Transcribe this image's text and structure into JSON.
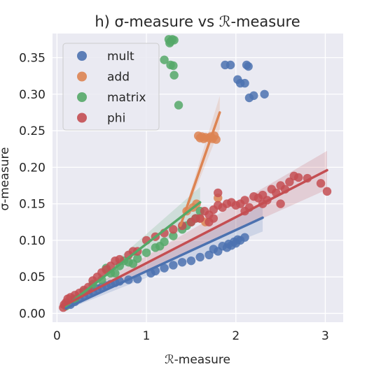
{
  "chart_data": {
    "type": "scatter",
    "title": "h) σ-measure vs ℛ-measure",
    "xlabel": "ℛ-measure",
    "ylabel": "σ-measure",
    "xlim": [
      -0.05,
      3.2
    ],
    "ylim": [
      -0.012,
      0.383
    ],
    "xticks": [
      0,
      1,
      2,
      3
    ],
    "yticks": [
      0.0,
      0.05,
      0.1,
      0.15,
      0.2,
      0.25,
      0.3,
      0.35
    ],
    "ytick_labels": [
      "0.00",
      "0.05",
      "0.10",
      "0.15",
      "0.20",
      "0.25",
      "0.30",
      "0.35"
    ],
    "grid": true,
    "legend_position": "top-left",
    "background": "#eaeaf2",
    "series": [
      {
        "name": "mult",
        "color": "#4c72b0",
        "points": [
          [
            0.15,
            0.012
          ],
          [
            0.2,
            0.016
          ],
          [
            0.25,
            0.02
          ],
          [
            0.3,
            0.024
          ],
          [
            0.35,
            0.027
          ],
          [
            0.4,
            0.03
          ],
          [
            0.45,
            0.034
          ],
          [
            0.5,
            0.036
          ],
          [
            0.55,
            0.038
          ],
          [
            0.6,
            0.04
          ],
          [
            0.65,
            0.042
          ],
          [
            0.7,
            0.044
          ],
          [
            0.8,
            0.046
          ],
          [
            0.9,
            0.047
          ],
          [
            1.05,
            0.055
          ],
          [
            1.1,
            0.058
          ],
          [
            1.2,
            0.062
          ],
          [
            1.3,
            0.066
          ],
          [
            1.4,
            0.07
          ],
          [
            1.5,
            0.072
          ],
          [
            1.6,
            0.077
          ],
          [
            1.7,
            0.08
          ],
          [
            1.8,
            0.085
          ],
          [
            1.9,
            0.09
          ],
          [
            1.95,
            0.093
          ],
          [
            2.0,
            0.096
          ],
          [
            2.05,
            0.1
          ],
          [
            2.1,
            0.104
          ],
          [
            1.75,
            0.088
          ],
          [
            1.85,
            0.092
          ],
          [
            1.92,
            0.095
          ],
          [
            1.98,
            0.098
          ],
          [
            2.02,
            0.101
          ],
          [
            1.88,
            0.34
          ],
          [
            1.94,
            0.34
          ],
          [
            2.02,
            0.32
          ],
          [
            2.05,
            0.315
          ],
          [
            2.1,
            0.315
          ],
          [
            2.12,
            0.34
          ],
          [
            2.14,
            0.338
          ],
          [
            2.15,
            0.295
          ],
          [
            2.2,
            0.298
          ],
          [
            2.32,
            0.3
          ]
        ],
        "fit": [
          [
            0.1,
            0.007
          ],
          [
            2.3,
            0.131
          ]
        ]
      },
      {
        "name": "add",
        "color": "#dd8452",
        "points": [
          [
            1.45,
            0.14
          ],
          [
            1.52,
            0.145
          ],
          [
            1.56,
            0.15
          ],
          [
            1.6,
            0.13
          ],
          [
            1.66,
            0.125
          ],
          [
            1.58,
            0.243
          ],
          [
            1.62,
            0.242
          ],
          [
            1.66,
            0.241
          ],
          [
            1.7,
            0.24
          ],
          [
            1.74,
            0.239
          ],
          [
            1.78,
            0.238
          ],
          [
            1.8,
            0.158
          ],
          [
            1.6,
            0.24
          ],
          [
            1.64,
            0.239
          ],
          [
            1.72,
            0.242
          ],
          [
            1.76,
            0.243
          ]
        ],
        "fit": [
          [
            1.38,
            0.12
          ],
          [
            1.82,
            0.275
          ]
        ]
      },
      {
        "name": "matrix",
        "color": "#55a868",
        "points": [
          [
            1.25,
            0.375
          ],
          [
            1.27,
            0.372
          ],
          [
            1.29,
            0.375
          ],
          [
            1.31,
            0.374
          ],
          [
            1.26,
            0.37
          ],
          [
            1.2,
            0.347
          ],
          [
            1.27,
            0.34
          ],
          [
            1.3,
            0.339
          ],
          [
            1.31,
            0.326
          ],
          [
            1.36,
            0.285
          ],
          [
            0.1,
            0.01
          ],
          [
            0.2,
            0.02
          ],
          [
            0.3,
            0.03
          ],
          [
            0.4,
            0.04
          ],
          [
            0.5,
            0.046
          ],
          [
            0.6,
            0.055
          ],
          [
            0.7,
            0.065
          ],
          [
            0.8,
            0.07
          ],
          [
            0.9,
            0.075
          ],
          [
            1.0,
            0.083
          ],
          [
            1.1,
            0.09
          ],
          [
            1.2,
            0.098
          ],
          [
            1.3,
            0.106
          ],
          [
            1.4,
            0.115
          ],
          [
            1.5,
            0.125
          ],
          [
            1.55,
            0.13
          ],
          [
            1.6,
            0.14
          ],
          [
            0.55,
            0.062
          ],
          [
            0.75,
            0.072
          ],
          [
            1.15,
            0.092
          ],
          [
            1.45,
            0.12
          ],
          [
            0.65,
            0.055
          ],
          [
            0.85,
            0.068
          ]
        ],
        "fit": [
          [
            0.1,
            0.01
          ],
          [
            1.6,
            0.152
          ]
        ]
      },
      {
        "name": "phi",
        "color": "#c44e52",
        "points": [
          [
            0.07,
            0.008
          ],
          [
            0.08,
            0.012
          ],
          [
            0.1,
            0.015
          ],
          [
            0.12,
            0.02
          ],
          [
            0.15,
            0.022
          ],
          [
            0.2,
            0.025
          ],
          [
            0.25,
            0.028
          ],
          [
            0.3,
            0.032
          ],
          [
            0.35,
            0.036
          ],
          [
            0.4,
            0.045
          ],
          [
            0.45,
            0.05
          ],
          [
            0.5,
            0.056
          ],
          [
            0.55,
            0.06
          ],
          [
            0.6,
            0.065
          ],
          [
            0.65,
            0.072
          ],
          [
            0.7,
            0.074
          ],
          [
            0.8,
            0.08
          ],
          [
            0.9,
            0.085
          ],
          [
            1.0,
            0.1
          ],
          [
            1.1,
            0.105
          ],
          [
            1.2,
            0.11
          ],
          [
            1.3,
            0.115
          ],
          [
            1.4,
            0.12
          ],
          [
            1.5,
            0.125
          ],
          [
            1.6,
            0.13
          ],
          [
            1.7,
            0.135
          ],
          [
            1.75,
            0.142
          ],
          [
            1.8,
            0.148
          ],
          [
            1.85,
            0.145
          ],
          [
            1.9,
            0.15
          ],
          [
            1.95,
            0.152
          ],
          [
            2.0,
            0.148
          ],
          [
            2.05,
            0.15
          ],
          [
            2.1,
            0.155
          ],
          [
            2.15,
            0.145
          ],
          [
            2.2,
            0.16
          ],
          [
            2.25,
            0.158
          ],
          [
            2.3,
            0.162
          ],
          [
            2.35,
            0.155
          ],
          [
            2.4,
            0.17
          ],
          [
            2.45,
            0.165
          ],
          [
            2.5,
            0.175
          ],
          [
            2.55,
            0.17
          ],
          [
            2.6,
            0.18
          ],
          [
            2.65,
            0.188
          ],
          [
            2.7,
            0.186
          ],
          [
            2.8,
            0.185
          ],
          [
            2.95,
            0.178
          ],
          [
            3.02,
            0.167
          ],
          [
            1.8,
            0.165
          ],
          [
            1.7,
            0.125
          ],
          [
            1.75,
            0.13
          ],
          [
            0.85,
            0.085
          ],
          [
            1.55,
            0.13
          ],
          [
            1.65,
            0.14
          ],
          [
            2.1,
            0.14
          ],
          [
            2.3,
            0.15
          ],
          [
            2.5,
            0.15
          ]
        ],
        "fit": [
          [
            0.05,
            0.009
          ],
          [
            3.02,
            0.196
          ]
        ]
      }
    ]
  }
}
